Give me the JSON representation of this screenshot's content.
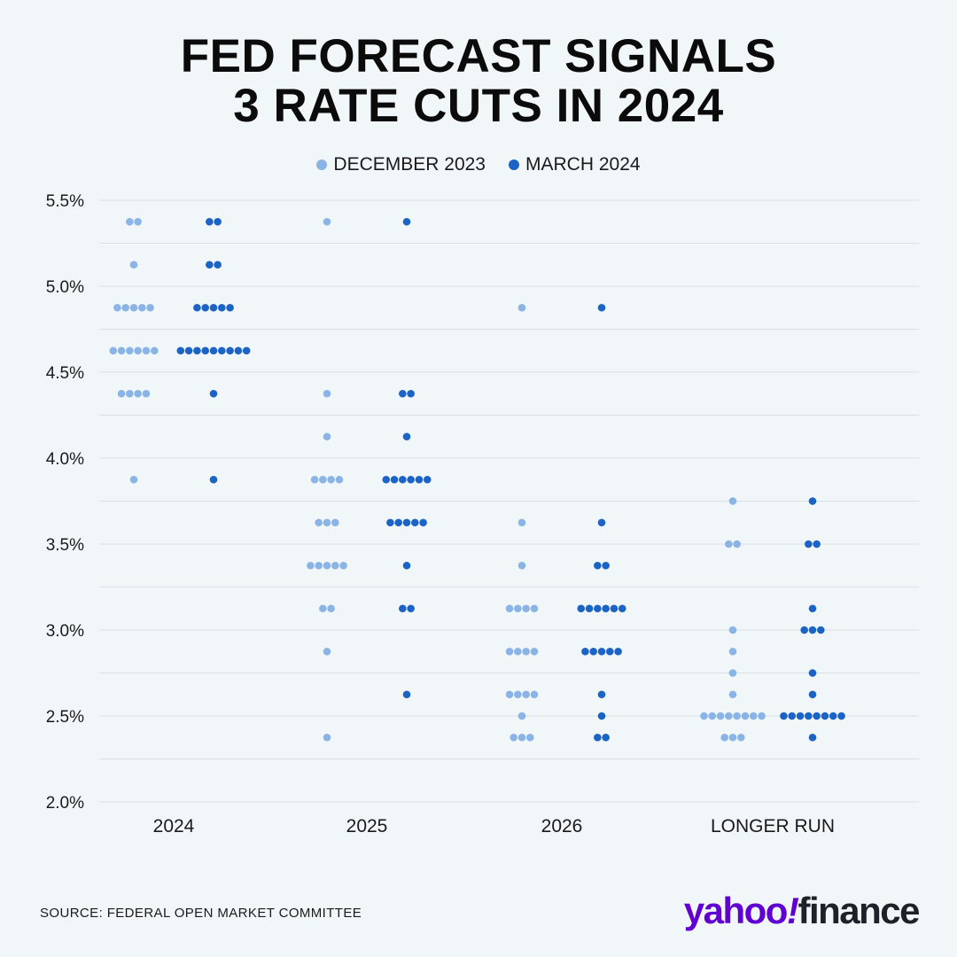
{
  "title": {
    "line1": "FED FORECAST SIGNALS",
    "line2": "3 RATE CUTS IN 2024"
  },
  "legend": [
    {
      "label": "DECEMBER 2023",
      "color": "#8ab4e6"
    },
    {
      "label": "MARCH 2024",
      "color": "#1b63c4"
    }
  ],
  "source": "SOURCE:  FEDERAL OPEN MARKET COMMITTEE",
  "logo": {
    "yahoo": "yahoo",
    "bang": "!",
    "finance": "finance"
  },
  "chart_data": {
    "type": "scatter",
    "title": "FED FORECAST SIGNALS 3 RATE CUTS IN 2024",
    "xlabel": "",
    "ylabel": "",
    "categories": [
      "2024",
      "2025",
      "2026",
      "LONGER RUN"
    ],
    "y_ticks": [
      "5.5%",
      "5.0%",
      "4.5%",
      "4.0%",
      "3.5%",
      "3.0%",
      "2.5%",
      "2.0%"
    ],
    "y_tick_values": [
      5.5,
      5.0,
      4.5,
      4.0,
      3.5,
      3.0,
      2.5,
      2.0
    ],
    "ylim": [
      2.0,
      5.5
    ],
    "grid": true,
    "legend_position": "top",
    "series": [
      {
        "name": "DECEMBER 2023",
        "color": "#8ab4e6",
        "groups": [
          {
            "category": "2024",
            "points": [
              {
                "y": 5.375,
                "count": 2
              },
              {
                "y": 5.125,
                "count": 1
              },
              {
                "y": 4.875,
                "count": 5
              },
              {
                "y": 4.625,
                "count": 6
              },
              {
                "y": 4.375,
                "count": 4
              },
              {
                "y": 3.875,
                "count": 1
              }
            ]
          },
          {
            "category": "2025",
            "points": [
              {
                "y": 5.375,
                "count": 1
              },
              {
                "y": 4.375,
                "count": 1
              },
              {
                "y": 4.125,
                "count": 1
              },
              {
                "y": 3.875,
                "count": 4
              },
              {
                "y": 3.625,
                "count": 3
              },
              {
                "y": 3.375,
                "count": 5
              },
              {
                "y": 3.125,
                "count": 2
              },
              {
                "y": 2.875,
                "count": 1
              },
              {
                "y": 2.375,
                "count": 1
              }
            ]
          },
          {
            "category": "2026",
            "points": [
              {
                "y": 4.875,
                "count": 1
              },
              {
                "y": 3.625,
                "count": 1
              },
              {
                "y": 3.375,
                "count": 1
              },
              {
                "y": 3.125,
                "count": 4
              },
              {
                "y": 2.875,
                "count": 4
              },
              {
                "y": 2.625,
                "count": 4
              },
              {
                "y": 2.5,
                "count": 1
              },
              {
                "y": 2.375,
                "count": 3
              }
            ]
          },
          {
            "category": "LONGER RUN",
            "points": [
              {
                "y": 3.75,
                "count": 1
              },
              {
                "y": 3.5,
                "count": 2
              },
              {
                "y": 3.0,
                "count": 1
              },
              {
                "y": 2.875,
                "count": 1
              },
              {
                "y": 2.75,
                "count": 1
              },
              {
                "y": 2.625,
                "count": 1
              },
              {
                "y": 2.5,
                "count": 8
              },
              {
                "y": 2.375,
                "count": 3
              }
            ]
          }
        ]
      },
      {
        "name": "MARCH 2024",
        "color": "#1b63c4",
        "groups": [
          {
            "category": "2024",
            "points": [
              {
                "y": 5.375,
                "count": 2
              },
              {
                "y": 5.125,
                "count": 2
              },
              {
                "y": 4.875,
                "count": 5
              },
              {
                "y": 4.625,
                "count": 9
              },
              {
                "y": 4.375,
                "count": 1
              },
              {
                "y": 3.875,
                "count": 1
              }
            ]
          },
          {
            "category": "2025",
            "points": [
              {
                "y": 5.375,
                "count": 1
              },
              {
                "y": 4.375,
                "count": 2
              },
              {
                "y": 4.125,
                "count": 1
              },
              {
                "y": 3.875,
                "count": 6
              },
              {
                "y": 3.625,
                "count": 5
              },
              {
                "y": 3.375,
                "count": 1
              },
              {
                "y": 3.125,
                "count": 2
              },
              {
                "y": 2.625,
                "count": 1
              }
            ]
          },
          {
            "category": "2026",
            "points": [
              {
                "y": 4.875,
                "count": 1
              },
              {
                "y": 3.625,
                "count": 1
              },
              {
                "y": 3.375,
                "count": 2
              },
              {
                "y": 3.125,
                "count": 6
              },
              {
                "y": 2.875,
                "count": 5
              },
              {
                "y": 2.625,
                "count": 1
              },
              {
                "y": 2.5,
                "count": 1
              },
              {
                "y": 2.375,
                "count": 2
              }
            ]
          },
          {
            "category": "LONGER RUN",
            "points": [
              {
                "y": 3.75,
                "count": 1
              },
              {
                "y": 3.5,
                "count": 2
              },
              {
                "y": 3.125,
                "count": 1
              },
              {
                "y": 3.0,
                "count": 3
              },
              {
                "y": 2.75,
                "count": 1
              },
              {
                "y": 2.625,
                "count": 1
              },
              {
                "y": 2.5,
                "count": 8
              },
              {
                "y": 2.375,
                "count": 1
              }
            ]
          }
        ]
      }
    ]
  }
}
